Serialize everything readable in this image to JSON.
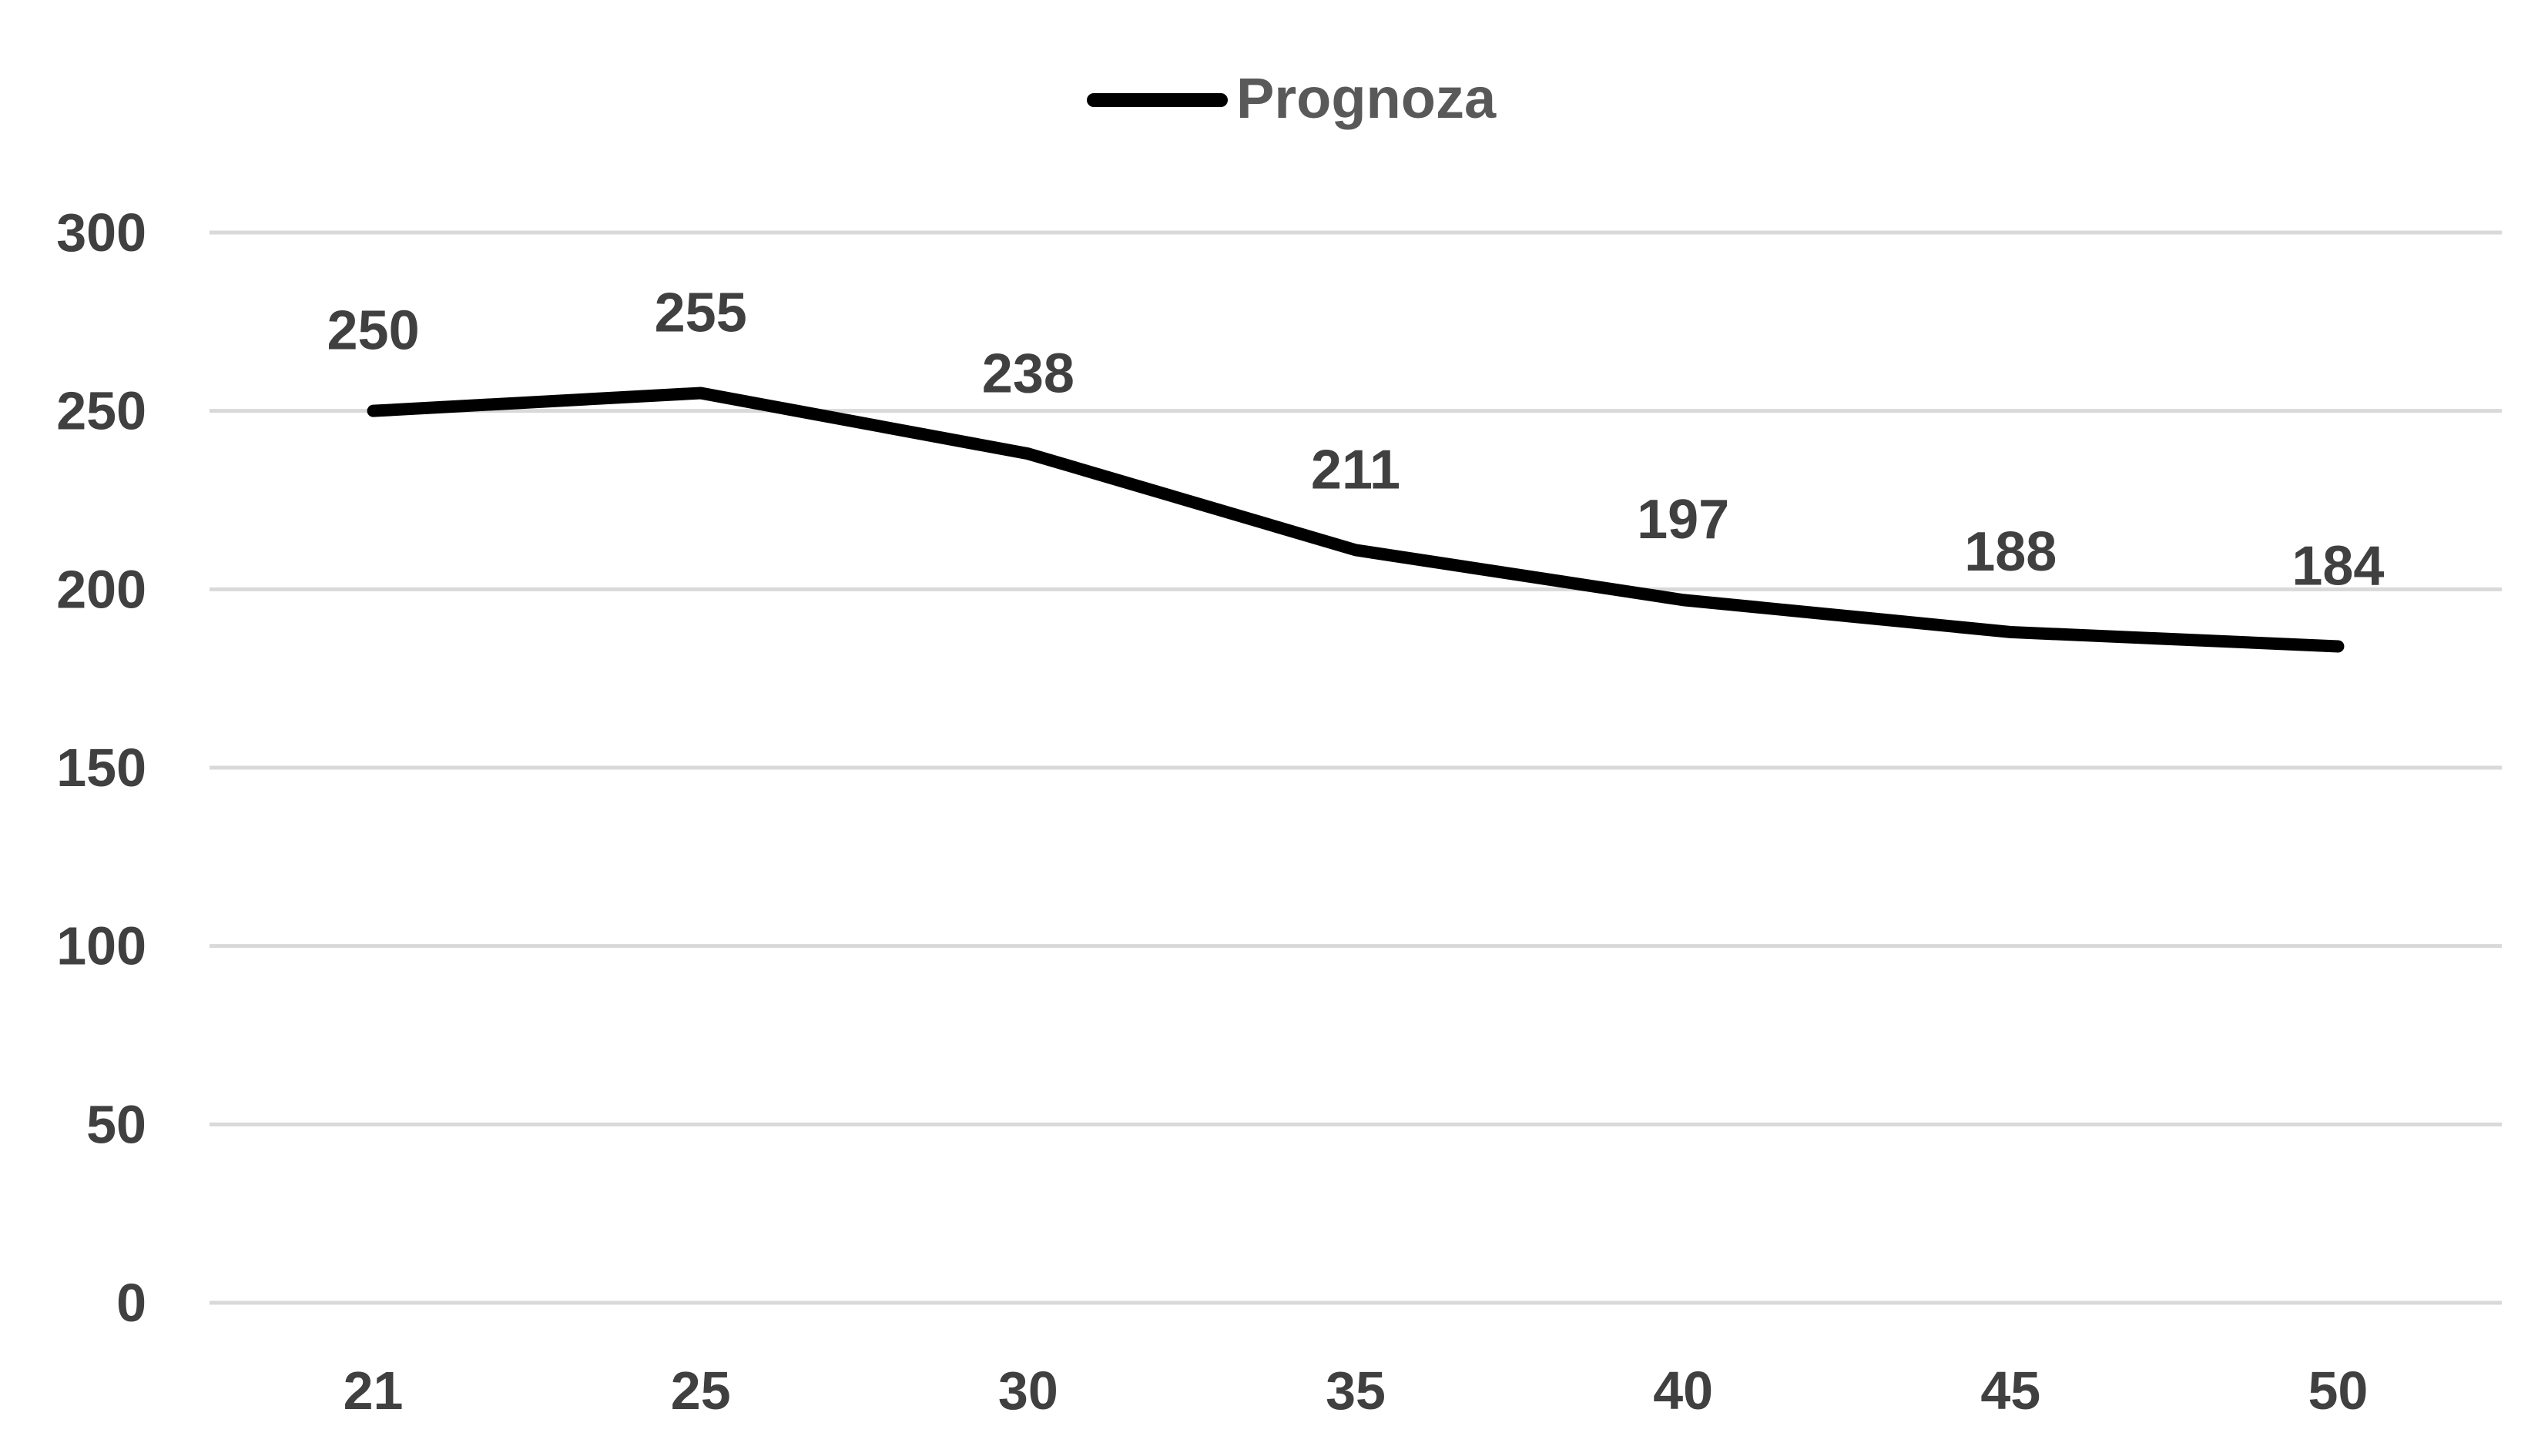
{
  "chart_data": {
    "type": "line",
    "categories": [
      "21",
      "25",
      "30",
      "35",
      "40",
      "45",
      "50"
    ],
    "series": [
      {
        "name": "Prognoza",
        "values": [
          250,
          255,
          238,
          211,
          197,
          188,
          184
        ],
        "color": "#000000"
      }
    ],
    "data_labels": [
      "250",
      "255",
      "238",
      "211",
      "197",
      "188",
      "184"
    ],
    "y_ticks": [
      "0",
      "50",
      "100",
      "150",
      "200",
      "250",
      "300"
    ],
    "ylim": [
      0,
      300
    ],
    "grid": true,
    "grid_color": "#d9d9d9",
    "legend_position": "top-center",
    "title": "",
    "xlabel": "",
    "ylabel": ""
  }
}
